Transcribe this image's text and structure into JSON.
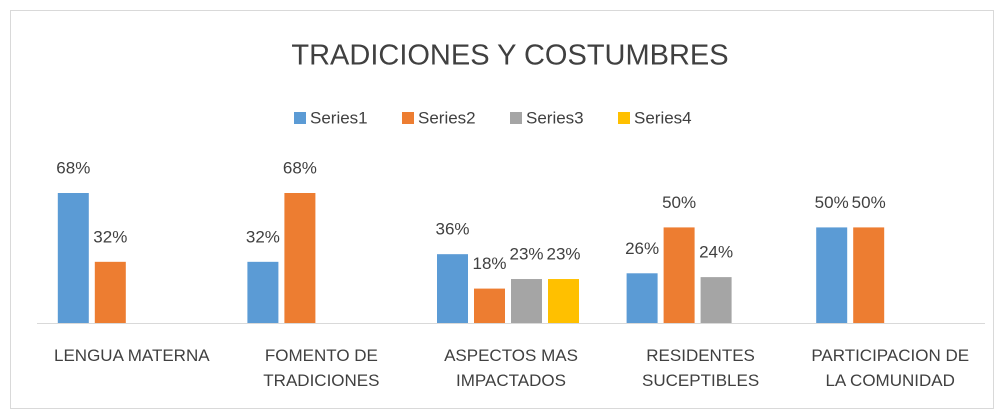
{
  "chart_data": {
    "type": "bar",
    "title": "TRADICIONES Y COSTUMBRES",
    "categories": [
      "LENGUA MATERNA",
      "FOMENTO DE TRADICIONES",
      "ASPECTOS MAS IMPACTADOS",
      "RESIDENTES SUCEPTIBLES",
      "PARTICIPACION DE LA COMUNIDAD"
    ],
    "series": [
      {
        "name": "Series1",
        "color": "#5b9bd5",
        "values": [
          68,
          32,
          36,
          26,
          50
        ],
        "value_labels": [
          "68%",
          "32%",
          "36%",
          "26%",
          "50%"
        ]
      },
      {
        "name": "Series2",
        "color": "#ed7d31",
        "values": [
          32,
          68,
          18,
          50,
          50
        ],
        "value_labels": [
          "32%",
          "68%",
          "18%",
          "50%",
          "50%"
        ]
      },
      {
        "name": "Series3",
        "color": "#a5a5a5",
        "values": [
          null,
          null,
          23,
          24,
          null
        ],
        "value_labels": [
          null,
          null,
          "23%",
          "24%",
          null
        ]
      },
      {
        "name": "Series4",
        "color": "#ffc000",
        "values": [
          null,
          null,
          23,
          null,
          null
        ],
        "value_labels": [
          null,
          null,
          "23%",
          null,
          null
        ]
      }
    ],
    "legend": "top"
  }
}
